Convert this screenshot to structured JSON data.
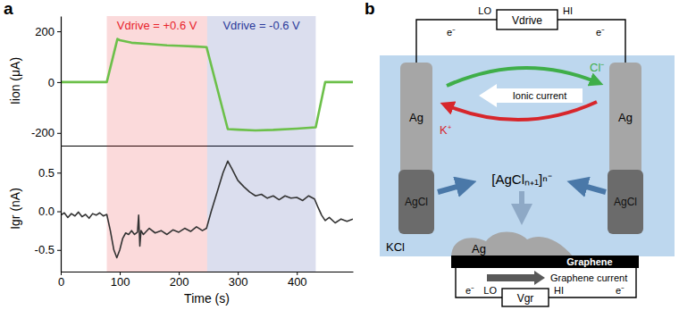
{
  "panels": [
    "a",
    "b"
  ],
  "chart_data": [
    {
      "type": "line",
      "ylabel": "Iion (μA)",
      "color": "#6cc04a",
      "x": [
        0,
        78,
        96,
        100,
        120,
        150,
        180,
        200,
        230,
        247,
        283,
        300,
        330,
        360,
        400,
        432,
        448,
        495
      ],
      "values": [
        0,
        0,
        170,
        165,
        155,
        150,
        145,
        143,
        140,
        138,
        -185,
        -187,
        -190,
        -188,
        -183,
        -178,
        0,
        0
      ],
      "xlim": [
        0,
        495
      ],
      "ylim": [
        -250,
        260
      ],
      "yticks": [
        -200,
        0,
        200
      ],
      "tick_labels": "y",
      "annotations": [
        {
          "text": "Vdrive = +0.6 V",
          "x0": 78,
          "x1": 248,
          "color": "#e8242b"
        },
        {
          "text": "Vdrive = -0.6 V",
          "x0": 248,
          "x1": 432,
          "color": "#2b3a9a"
        }
      ]
    },
    {
      "type": "line",
      "ylabel": "Igr (nA)",
      "xlabel": "Time (s)",
      "color": "#333333",
      "x": [
        0,
        6,
        12,
        18,
        24,
        30,
        36,
        42,
        48,
        54,
        60,
        66,
        72,
        78,
        84,
        90,
        95,
        100,
        105,
        110,
        115,
        120,
        125,
        130,
        132,
        134,
        136,
        140,
        150,
        160,
        170,
        180,
        190,
        200,
        210,
        220,
        230,
        240,
        247,
        255,
        265,
        275,
        283,
        290,
        300,
        310,
        320,
        330,
        340,
        350,
        360,
        370,
        380,
        390,
        400,
        410,
        420,
        430,
        436,
        442,
        448,
        455,
        465,
        475,
        485,
        495
      ],
      "values": [
        -0.05,
        -0.02,
        -0.08,
        -0.03,
        -0.06,
        -0.01,
        -0.07,
        -0.04,
        -0.09,
        -0.03,
        -0.05,
        -0.02,
        -0.06,
        -0.04,
        -0.25,
        -0.5,
        -0.6,
        -0.5,
        -0.35,
        -0.28,
        -0.3,
        -0.25,
        -0.3,
        -0.27,
        -0.05,
        -0.45,
        -0.25,
        -0.3,
        -0.22,
        -0.28,
        -0.25,
        -0.3,
        -0.24,
        -0.27,
        -0.22,
        -0.26,
        -0.2,
        -0.25,
        -0.22,
        0.0,
        0.25,
        0.5,
        0.65,
        0.55,
        0.4,
        0.32,
        0.25,
        0.2,
        0.22,
        0.17,
        0.2,
        0.15,
        0.2,
        0.17,
        0.18,
        0.14,
        0.2,
        0.16,
        0.05,
        -0.05,
        -0.12,
        -0.08,
        -0.15,
        -0.1,
        -0.13,
        -0.1
      ],
      "xlim": [
        0,
        495
      ],
      "ylim": [
        -0.78,
        0.85
      ],
      "xticks": [
        0,
        100,
        200,
        300,
        400
      ],
      "yticks": [
        -0.5,
        {
          "value": 0,
          "label": "0.0"
        },
        0.5
      ],
      "spans": [
        {
          "x0": 78,
          "x1": 248,
          "color": "#e8242b"
        },
        {
          "x0": 248,
          "x1": 432,
          "color": "#2b3a9a"
        }
      ]
    }
  ],
  "diagram": {
    "top_circuit": {
      "lo": "LO",
      "hi": "HI",
      "source": "Vdrive",
      "electrons": [
        "e⁻",
        "e⁻"
      ]
    },
    "electrodes": [
      {
        "metal": "Ag",
        "coating": "AgCl"
      },
      {
        "metal": "Ag",
        "coating": "AgCl"
      }
    ],
    "anion": "Cl⁻",
    "cation": "K⁺",
    "ionic_current": "Ionic current",
    "complex": "[AgClₙ₊₁]ⁿ⁻",
    "electrolyte": "KCl",
    "deposit": "Ag",
    "channel": "Graphene",
    "channel_current": "Graphene current",
    "bottom_circuit": {
      "lo": "LO",
      "hi": "HI",
      "source": "Vgr",
      "electrons": [
        "e⁻",
        "e⁻"
      ]
    }
  }
}
